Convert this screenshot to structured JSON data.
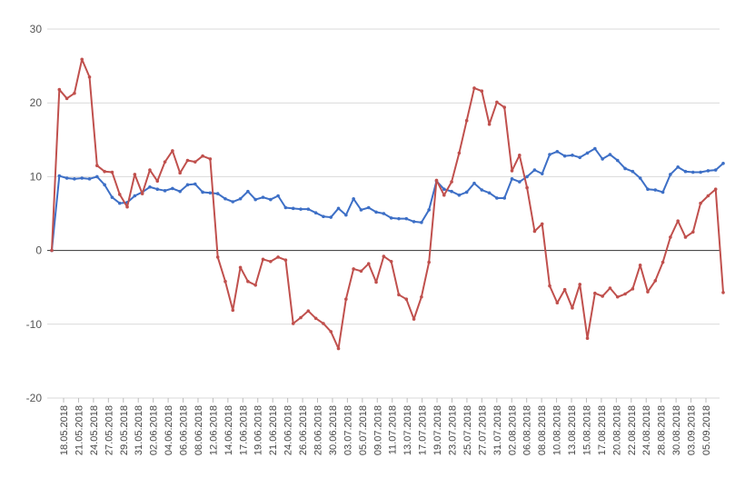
{
  "chart_data": {
    "type": "line",
    "ylim": [
      -20,
      30
    ],
    "yticks": [
      30,
      20,
      10,
      0,
      -10,
      -20
    ],
    "grid": true,
    "x_tick_labels": [
      "18.05.2018",
      "21.05.2018",
      "24.05.2018",
      "27.05.2018",
      "29.05.2018",
      "31.05.2018",
      "02.06.2018",
      "04.06.2018",
      "06.06.2018",
      "08.06.2018",
      "12.06.2018",
      "14.06.2018",
      "17.06.2018",
      "19.06.2018",
      "21.06.2018",
      "24.06.2018",
      "26.06.2018",
      "28.06.2018",
      "30.06.2018",
      "03.07.2018",
      "05.07.2018",
      "09.07.2018",
      "11.07.2018",
      "13.07.2018",
      "17.07.2018",
      "19.07.2018",
      "23.07.2018",
      "25.07.2018",
      "27.07.2018",
      "31.07.2018",
      "02.08.2018",
      "06.08.2018",
      "08.08.2018",
      "10.08.2018",
      "13.08.2018",
      "15.08.2018",
      "17.08.2018",
      "20.08.2018",
      "22.08.2018",
      "24.08.2018",
      "28.08.2018",
      "30.08.2018",
      "03.09.2018",
      "05.09.2018"
    ],
    "series": [
      {
        "color": "#3d6fc6",
        "values": [
          0,
          10.1,
          9.8,
          9.7,
          9.8,
          9.7,
          10.0,
          8.9,
          7.2,
          6.4,
          6.5,
          7.4,
          7.9,
          8.6,
          8.3,
          8.1,
          8.4,
          8.0,
          8.9,
          9.0,
          7.9,
          7.8,
          7.7,
          7.0,
          6.6,
          7.0,
          8.0,
          6.9,
          7.2,
          6.9,
          7.4,
          5.8,
          5.7,
          5.6,
          5.6,
          5.1,
          4.6,
          4.5,
          5.7,
          4.8,
          7.0,
          5.5,
          5.8,
          5.2,
          5.0,
          4.4,
          4.3,
          4.3,
          3.9,
          3.8,
          5.5,
          9.4,
          8.3,
          8.0,
          7.5,
          7.9,
          9.1,
          8.2,
          7.8,
          7.1,
          7.1,
          9.7,
          9.3,
          10.0,
          10.9,
          10.4,
          13.0,
          13.4,
          12.8,
          12.9,
          12.6,
          13.2,
          13.8,
          12.4,
          13.0,
          12.2,
          11.1,
          10.7,
          9.8,
          8.3,
          8.2,
          7.9,
          10.3,
          11.3,
          10.7,
          10.6,
          10.6,
          10.8,
          10.9,
          11.8
        ]
      },
      {
        "color": "#c0504d",
        "values": [
          0,
          21.8,
          20.6,
          21.3,
          25.9,
          23.5,
          11.5,
          10.7,
          10.6,
          7.6,
          5.9,
          10.3,
          7.7,
          10.9,
          9.4,
          12.0,
          13.5,
          10.5,
          12.2,
          12.0,
          12.8,
          12.4,
          -0.9,
          -4.2,
          -8.1,
          -2.3,
          -4.2,
          -4.7,
          -1.2,
          -1.5,
          -0.9,
          -1.3,
          -9.9,
          -9.1,
          -8.2,
          -9.2,
          -9.9,
          -11.0,
          -13.3,
          -6.6,
          -2.5,
          -2.8,
          -1.8,
          -4.3,
          -0.8,
          -1.5,
          -6.0,
          -6.6,
          -9.3,
          -6.3,
          -1.6,
          9.5,
          7.5,
          9.3,
          13.2,
          17.6,
          22.0,
          21.6,
          17.1,
          20.1,
          19.4,
          10.8,
          12.9,
          8.5,
          2.6,
          3.6,
          -4.8,
          -7.1,
          -5.3,
          -7.8,
          -4.6,
          -11.9,
          -5.8,
          -6.2,
          -5.1,
          -6.3,
          -5.9,
          -5.2,
          -2.0,
          -5.6,
          -4.1,
          -1.6,
          1.8,
          4.0,
          1.8,
          2.5,
          6.4,
          7.4,
          8.3,
          -5.7
        ]
      }
    ]
  }
}
